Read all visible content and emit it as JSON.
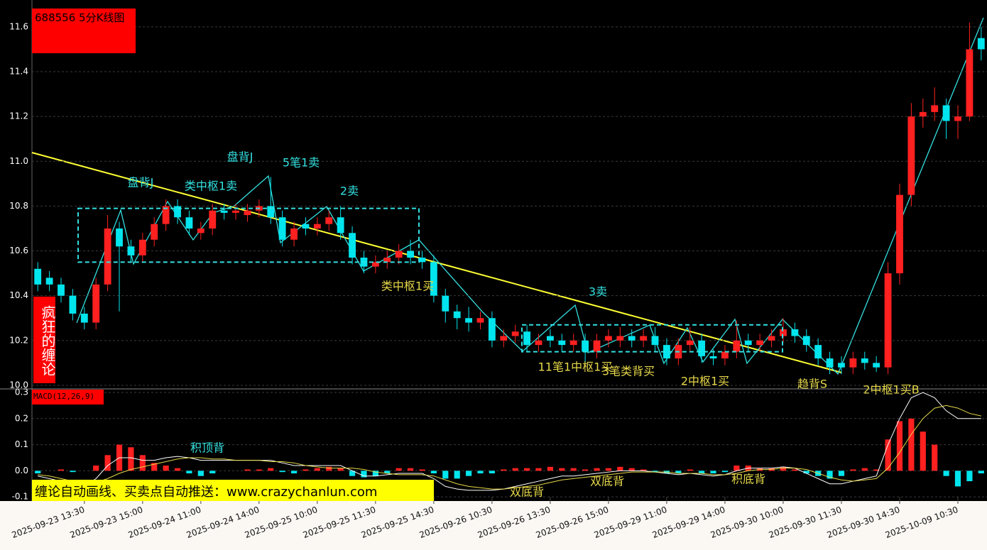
{
  "chart_data": [
    {
      "type": "candlestick",
      "title": "688556 5分K线图",
      "side_label": "疯狂的缠论",
      "categories": [
        null,
        null,
        null,
        null,
        "2025-09-23 13:30",
        null,
        null,
        null,
        null,
        "2025-09-23 15:00",
        null,
        null,
        null,
        null,
        "2025-09-24 11:00",
        null,
        null,
        null,
        null,
        "2025-09-24 14:00",
        null,
        null,
        null,
        null,
        "2025-09-25 10:00",
        null,
        null,
        null,
        null,
        "2025-09-25 11:30",
        null,
        null,
        null,
        null,
        "2025-09-25 14:30",
        null,
        null,
        null,
        null,
        "2025-09-26 10:30",
        null,
        null,
        null,
        null,
        "2025-09-26 13:30",
        null,
        null,
        null,
        null,
        "2025-09-26 15:00",
        null,
        null,
        null,
        null,
        "2025-09-29 11:00",
        null,
        null,
        null,
        null,
        "2025-09-29 14:00",
        null,
        null,
        null,
        null,
        "2025-09-30 10:00",
        null,
        null,
        null,
        null,
        "2025-09-30 11:30",
        null,
        null,
        null,
        null,
        "2025-09-30 14:30",
        null,
        null,
        null,
        null,
        "2025-10-09 10:30",
        null,
        null
      ],
      "open": [
        10.52,
        10.48,
        10.45,
        10.4,
        10.32,
        10.28,
        10.45,
        10.7,
        10.62,
        10.58,
        10.65,
        10.72,
        10.8,
        10.75,
        10.68,
        10.7,
        10.78,
        10.77,
        10.76,
        10.78,
        10.8,
        10.75,
        10.65,
        10.72,
        10.7,
        10.72,
        10.75,
        10.68,
        10.57,
        10.53,
        10.55,
        10.57,
        10.6,
        10.57,
        10.55,
        10.4,
        10.33,
        10.3,
        10.28,
        10.3,
        10.2,
        10.22,
        10.24,
        10.18,
        10.22,
        10.2,
        10.18,
        10.2,
        10.15,
        10.2,
        10.2,
        10.22,
        10.2,
        10.22,
        10.18,
        10.12,
        10.18,
        10.2,
        10.13,
        10.12,
        10.15,
        10.2,
        10.18,
        10.2,
        10.22,
        10.25,
        10.22,
        10.18,
        10.12,
        10.1,
        10.08,
        10.12,
        10.1,
        10.08,
        10.5,
        10.85,
        11.2,
        11.22,
        11.25,
        11.18,
        11.2,
        11.55
      ],
      "high": [
        10.55,
        10.51,
        10.48,
        10.43,
        10.35,
        10.48,
        10.76,
        10.73,
        10.65,
        10.68,
        10.75,
        10.83,
        10.83,
        10.78,
        10.73,
        10.81,
        10.81,
        10.81,
        10.81,
        10.83,
        10.93,
        10.78,
        10.73,
        10.75,
        10.75,
        10.78,
        10.8,
        10.71,
        10.6,
        10.58,
        10.6,
        10.63,
        10.65,
        10.6,
        10.58,
        10.43,
        10.36,
        10.35,
        10.33,
        10.33,
        10.25,
        10.27,
        10.27,
        10.23,
        10.25,
        10.23,
        10.23,
        10.23,
        10.23,
        10.25,
        10.26,
        10.25,
        10.25,
        10.26,
        10.21,
        10.21,
        10.26,
        10.23,
        10.16,
        10.18,
        10.29,
        10.23,
        10.23,
        10.25,
        10.3,
        10.28,
        10.25,
        10.21,
        10.15,
        10.13,
        10.15,
        10.15,
        10.13,
        10.55,
        10.9,
        11.26,
        11.28,
        11.33,
        11.28,
        11.25,
        11.62,
        11.6
      ],
      "low": [
        10.42,
        10.42,
        10.37,
        10.29,
        10.25,
        10.25,
        10.42,
        10.33,
        10.55,
        10.55,
        10.62,
        10.69,
        10.72,
        10.67,
        10.65,
        10.67,
        10.74,
        10.74,
        10.73,
        10.75,
        10.72,
        10.62,
        10.62,
        10.67,
        10.67,
        10.69,
        10.65,
        10.54,
        10.5,
        10.5,
        10.52,
        10.54,
        10.54,
        10.52,
        10.37,
        10.28,
        10.25,
        10.24,
        10.25,
        10.17,
        10.17,
        10.19,
        10.15,
        10.15,
        10.17,
        10.15,
        10.15,
        10.1,
        10.12,
        10.17,
        10.17,
        10.17,
        10.17,
        10.15,
        10.09,
        10.09,
        10.15,
        10.1,
        10.09,
        10.09,
        10.12,
        10.15,
        10.15,
        10.17,
        10.19,
        10.19,
        10.15,
        10.09,
        10.05,
        10.05,
        10.05,
        10.07,
        10.06,
        10.05,
        10.45,
        10.8,
        11.15,
        11.18,
        11.1,
        11.1,
        11.18,
        11.45
      ],
      "close": [
        10.45,
        10.45,
        10.4,
        10.32,
        10.28,
        10.45,
        10.7,
        10.62,
        10.58,
        10.65,
        10.72,
        10.8,
        10.75,
        10.7,
        10.7,
        10.78,
        10.77,
        10.78,
        10.78,
        10.8,
        10.75,
        10.65,
        10.7,
        10.7,
        10.72,
        10.75,
        10.68,
        10.57,
        10.53,
        10.55,
        10.57,
        10.6,
        10.57,
        10.55,
        10.4,
        10.33,
        10.3,
        10.28,
        10.3,
        10.2,
        10.22,
        10.24,
        10.18,
        10.2,
        10.2,
        10.18,
        10.2,
        10.15,
        10.2,
        10.22,
        10.22,
        10.2,
        10.22,
        10.18,
        10.12,
        10.18,
        10.2,
        10.13,
        10.12,
        10.15,
        10.2,
        10.18,
        10.2,
        10.22,
        10.25,
        10.22,
        10.18,
        10.12,
        10.08,
        10.08,
        10.12,
        10.1,
        10.08,
        10.5,
        10.85,
        11.2,
        11.22,
        11.25,
        11.18,
        11.2,
        11.5,
        11.5
      ],
      "up_color": "#ff2020",
      "down_color": "#00e5ee",
      "ylim": [
        9.984,
        11.72
      ],
      "yticks": [
        {
          "value": 10,
          "label": "10.0"
        },
        10.2,
        10.4,
        10.6,
        10.8,
        {
          "value": 11,
          "label": "11.0"
        },
        11.2,
        11.4,
        11.6
      ],
      "grid": true,
      "pivot_boxes": [
        {
          "low": 10.55,
          "high": 10.79
        },
        {
          "low": 10.15,
          "high": 10.27
        }
      ],
      "annotations": [
        "盘背J",
        "类中枢1卖",
        "盘背J",
        "5笔1卖",
        "2卖",
        "类中枢1买",
        "3卖",
        "11笔1中枢1买",
        "3笔类背买",
        "2中枢1买",
        "趋背S",
        "2中枢1买B"
      ]
    },
    {
      "type": "macd",
      "title": "MACD(12,26,9)",
      "histogram": [
        -0.01,
        0,
        0.005,
        -0.005,
        0,
        0.02,
        0.06,
        0.1,
        0.09,
        0.06,
        0.03,
        0.02,
        0.01,
        -0.01,
        -0.02,
        -0.01,
        0,
        0,
        0.005,
        0.005,
        0.01,
        -0.005,
        -0.01,
        0.005,
        0.01,
        0.015,
        0.01,
        -0.02,
        -0.025,
        -0.02,
        -0.01,
        0.01,
        0.01,
        0.005,
        -0.01,
        -0.03,
        -0.03,
        -0.02,
        -0.01,
        -0.01,
        0.005,
        0.01,
        0.01,
        0.01,
        0.015,
        0.01,
        0.01,
        0.005,
        0.01,
        0.01,
        0.015,
        0.01,
        0.005,
        -0.005,
        -0.01,
        -0.01,
        0.005,
        -0.01,
        -0.01,
        -0.005,
        0.02,
        0.02,
        0.01,
        0.01,
        0.015,
        0.005,
        -0.01,
        -0.02,
        -0.03,
        -0.02,
        0.005,
        0.01,
        0.005,
        0.12,
        0.19,
        0.2,
        0.15,
        0.1,
        -0.02,
        -0.06,
        -0.04,
        -0.01
      ],
      "lines": [
        {
          "color": "#ffffff",
          "values": [
            -0.02,
            -0.03,
            -0.04,
            -0.05,
            -0.06,
            -0.03,
            0.02,
            0.05,
            0.05,
            0.04,
            0.04,
            0.05,
            0.055,
            0.05,
            0.04,
            0.04,
            0.04,
            0.04,
            0.04,
            0.04,
            0.04,
            0.03,
            0.02,
            0.02,
            0.02,
            0.02,
            0.02,
            0,
            -0.02,
            -0.02,
            -0.015,
            -0.01,
            -0.01,
            -0.01,
            -0.03,
            -0.06,
            -0.07,
            -0.075,
            -0.075,
            -0.075,
            -0.07,
            -0.06,
            -0.05,
            -0.04,
            -0.03,
            -0.02,
            -0.02,
            -0.015,
            -0.01,
            -0.005,
            0,
            0,
            0,
            -0.005,
            -0.01,
            -0.015,
            -0.01,
            -0.015,
            -0.02,
            -0.015,
            0,
            0.01,
            0.01,
            0.01,
            0.015,
            0.01,
            -0.01,
            -0.03,
            -0.05,
            -0.05,
            -0.04,
            -0.03,
            -0.02,
            0.1,
            0.2,
            0.28,
            0.3,
            0.28,
            0.23,
            0.2,
            0.2,
            0.2
          ]
        },
        {
          "color": "#e6d84a",
          "values": [
            -0.015,
            -0.02,
            -0.03,
            -0.04,
            -0.05,
            -0.045,
            -0.03,
            -0.01,
            0.005,
            0.015,
            0.025,
            0.035,
            0.045,
            0.05,
            0.05,
            0.045,
            0.045,
            0.04,
            0.04,
            0.04,
            0.035,
            0.035,
            0.03,
            0.02,
            0.015,
            0.01,
            0.01,
            0.01,
            0.005,
            -0.005,
            -0.01,
            -0.015,
            -0.015,
            -0.015,
            -0.02,
            -0.035,
            -0.05,
            -0.06,
            -0.065,
            -0.07,
            -0.07,
            -0.065,
            -0.06,
            -0.055,
            -0.045,
            -0.035,
            -0.03,
            -0.025,
            -0.02,
            -0.015,
            -0.01,
            -0.005,
            -0.005,
            -0.005,
            -0.005,
            -0.01,
            -0.01,
            -0.01,
            -0.015,
            -0.015,
            -0.01,
            0,
            0.005,
            0.005,
            0.01,
            0.01,
            0.005,
            -0.01,
            -0.025,
            -0.035,
            -0.04,
            -0.035,
            -0.03,
            0.01,
            0.07,
            0.14,
            0.2,
            0.24,
            0.25,
            0.24,
            0.22,
            0.21
          ]
        }
      ],
      "up_color": "#ff2020",
      "down_color": "#00e5ee",
      "ylim": [
        -0.116,
        0.3137
      ],
      "yticks": [
        -0.1,
        {
          "value": 0,
          "label": "0.0"
        },
        0.1,
        0.2,
        0.3
      ],
      "annotations": [
        "积顶背",
        "双底背",
        "双底背",
        "积底背"
      ]
    }
  ],
  "banner": "缠论自动画线、买卖点自动推送：www.crazychanlun.com"
}
